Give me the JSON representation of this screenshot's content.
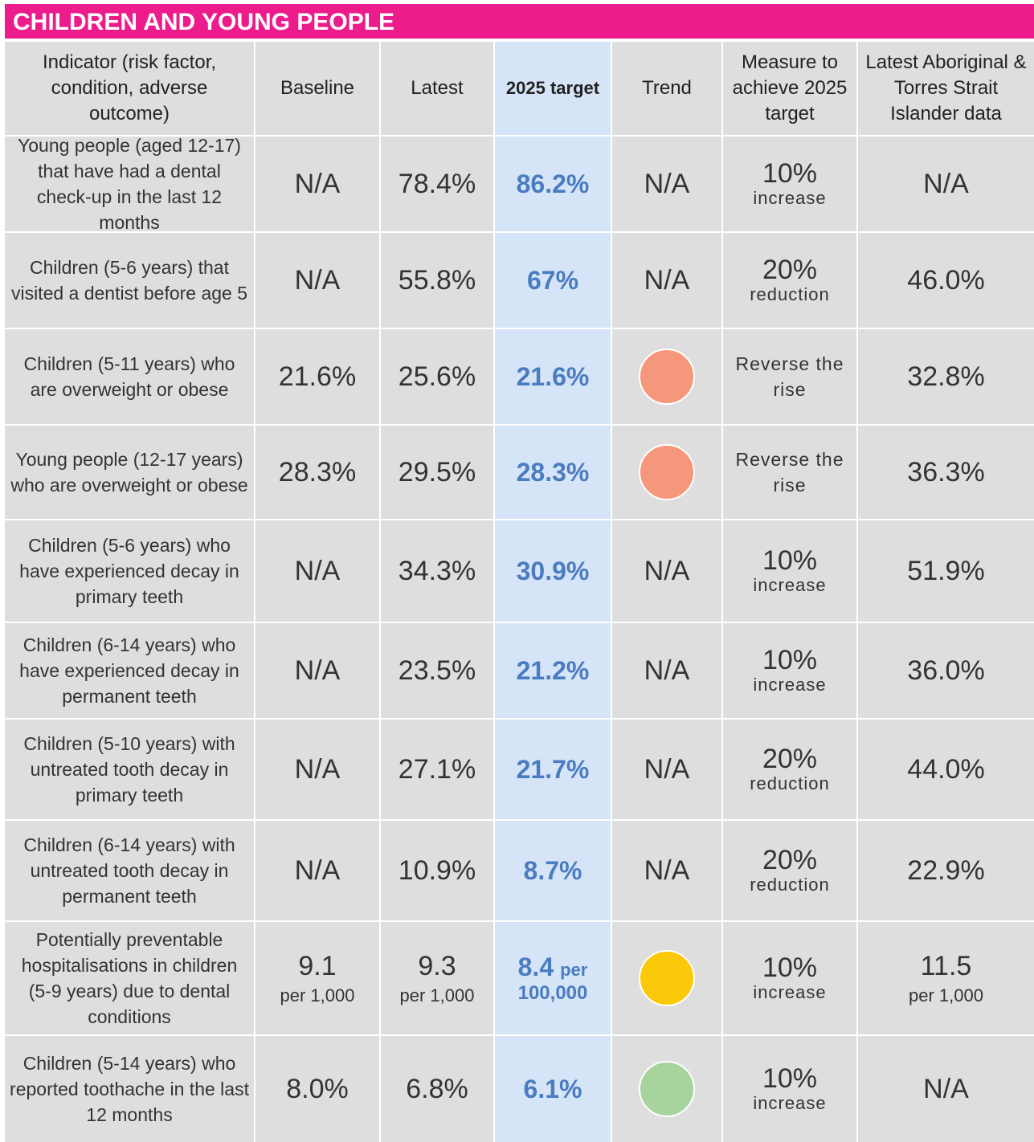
{
  "title": "CHILDREN AND YOUNG PEOPLE",
  "table": {
    "headers": [
      "Indicator (risk factor, condition, adverse outcome)",
      "Baseline",
      "Latest",
      "2025 target",
      "Trend",
      "Measure to achieve 2025 target",
      "Latest Aboriginal & Torres Strait Islander data"
    ],
    "rows": [
      {
        "indicator": "Young people (aged 12-17) that have had a dental check-up in the last 12 months",
        "baseline": "N/A",
        "latest": "78.4%",
        "target": "86.2%",
        "trend": "N/A",
        "measure": "10%",
        "measure_note": "increase",
        "aboriginal": "N/A"
      },
      {
        "indicator": "Children (5-6 years) that visited a dentist before age 5",
        "baseline": "N/A",
        "latest": "55.8%",
        "target": "67%",
        "trend": "N/A",
        "measure": "20%",
        "measure_note": "reduction",
        "aboriginal": "46.0%"
      },
      {
        "indicator": "Children (5-11 years) who are overweight or obese",
        "baseline": "21.6%",
        "latest": "25.6%",
        "target": "21.6%",
        "trend_color": "#f4977a",
        "measure": "Reverse the rise",
        "aboriginal": "32.8%"
      },
      {
        "indicator": "Young people (12-17 years) who are overweight or obese",
        "baseline": "28.3%",
        "latest": "29.5%",
        "target": "28.3%",
        "trend_color": "#f4977a",
        "measure": "Reverse the rise",
        "aboriginal": "36.3%"
      },
      {
        "indicator": "Children (5-6 years) who have experienced decay in primary teeth",
        "baseline": "N/A",
        "latest": "34.3%",
        "target": "30.9%",
        "trend": "N/A",
        "measure": "10%",
        "measure_note": "increase",
        "aboriginal": "51.9%"
      },
      {
        "indicator": "Children (6-14 years) who have experienced decay in permanent teeth",
        "baseline": "N/A",
        "latest": "23.5%",
        "target": "21.2%",
        "trend": "N/A",
        "measure": "10%",
        "measure_note": "increase",
        "aboriginal": "36.0%"
      },
      {
        "indicator": "Children (5-10 years) with untreated tooth decay in primary teeth",
        "baseline": "N/A",
        "latest": "27.1%",
        "target": "21.7%",
        "trend": "N/A",
        "measure": "20%",
        "measure_note": "reduction",
        "aboriginal": "44.0%"
      },
      {
        "indicator": "Children (6-14 years) with untreated tooth decay in permanent teeth",
        "baseline": "N/A",
        "latest": "10.9%",
        "target": "8.7%",
        "trend": "N/A",
        "measure": "20%",
        "measure_note": "reduction",
        "aboriginal": "22.9%"
      },
      {
        "indicator": "Potentially preventable hospitalisations in children (5-9 years) due to dental conditions",
        "baseline": "9.1",
        "baseline_unit": "per 1,000",
        "latest": "9.3",
        "latest_unit": "per 1,000",
        "target": "8.4",
        "target_unit": "per",
        "target_unit2": "100,000",
        "trend_color": "#fcc80a",
        "measure": "10%",
        "measure_note": "increase",
        "aboriginal": "11.5",
        "aboriginal_unit": "per 1,000"
      },
      {
        "indicator": "Children (5-14 years) who reported toothache in the last 12 months",
        "baseline": "8.0%",
        "latest": "6.8%",
        "target": "6.1%",
        "trend_color": "#a6d49c",
        "measure": "10%",
        "measure_note": "increase",
        "aboriginal": "N/A"
      }
    ]
  }
}
